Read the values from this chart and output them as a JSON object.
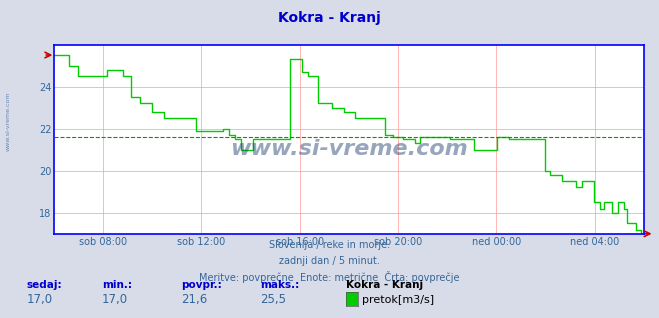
{
  "title": "Kokra - Kranj",
  "title_color": "#0000cc",
  "bg_color": "#d8dce8",
  "plot_bg_color": "#ffffff",
  "line_color": "#00cc00",
  "avg_line_color": "#009900",
  "axis_color": "#0000ff",
  "grid_color": "#ff9999",
  "text_color": "#336699",
  "ylim": [
    17.0,
    26.0
  ],
  "yticks": [
    18,
    20,
    22,
    24
  ],
  "avg_value": 21.6,
  "subtitle1": "Slovenija / reke in morje.",
  "subtitle2": "zadnji dan / 5 minut.",
  "subtitle3": "Meritve: povprečne  Enote: metrične  Črta: povprečje",
  "footer_labels": [
    "sedaj:",
    "min.:",
    "povpr.:",
    "maks.:",
    "Kokra - Kranj"
  ],
  "footer_values": [
    "17,0",
    "17,0",
    "21,6",
    "25,5"
  ],
  "legend_label": "pretok[m3/s]",
  "xtick_labels": [
    "sob 08:00",
    "sob 12:00",
    "sob 16:00",
    "sob 20:00",
    "ned 00:00",
    "ned 04:00"
  ],
  "watermark": "www.si-vreme.com",
  "watermark_color": "#1a3a6b",
  "left_watermark_color": "#5577aa",
  "keypoints": [
    [
      0.0,
      25.5
    ],
    [
      0.01,
      25.5
    ],
    [
      0.025,
      25.0
    ],
    [
      0.04,
      24.5
    ],
    [
      0.055,
      24.5
    ],
    [
      0.07,
      24.5
    ],
    [
      0.09,
      24.8
    ],
    [
      0.1,
      24.8
    ],
    [
      0.115,
      24.5
    ],
    [
      0.13,
      23.5
    ],
    [
      0.145,
      23.2
    ],
    [
      0.165,
      22.8
    ],
    [
      0.185,
      22.5
    ],
    [
      0.21,
      22.5
    ],
    [
      0.24,
      21.9
    ],
    [
      0.27,
      21.9
    ],
    [
      0.285,
      22.0
    ],
    [
      0.295,
      21.7
    ],
    [
      0.305,
      21.5
    ],
    [
      0.315,
      21.0
    ],
    [
      0.325,
      21.0
    ],
    [
      0.335,
      21.5
    ],
    [
      0.345,
      21.5
    ],
    [
      0.355,
      21.5
    ],
    [
      0.395,
      21.5
    ],
    [
      0.4,
      25.3
    ],
    [
      0.415,
      25.3
    ],
    [
      0.42,
      24.7
    ],
    [
      0.43,
      24.5
    ],
    [
      0.445,
      23.2
    ],
    [
      0.46,
      23.2
    ],
    [
      0.47,
      23.0
    ],
    [
      0.49,
      22.8
    ],
    [
      0.51,
      22.5
    ],
    [
      0.54,
      22.5
    ],
    [
      0.56,
      21.7
    ],
    [
      0.575,
      21.6
    ],
    [
      0.59,
      21.5
    ],
    [
      0.6,
      21.5
    ],
    [
      0.61,
      21.3
    ],
    [
      0.62,
      21.6
    ],
    [
      0.64,
      21.6
    ],
    [
      0.66,
      21.6
    ],
    [
      0.67,
      21.5
    ],
    [
      0.68,
      21.5
    ],
    [
      0.7,
      21.5
    ],
    [
      0.71,
      21.0
    ],
    [
      0.72,
      21.0
    ],
    [
      0.74,
      21.0
    ],
    [
      0.75,
      21.6
    ],
    [
      0.76,
      21.6
    ],
    [
      0.77,
      21.5
    ],
    [
      0.79,
      21.5
    ],
    [
      0.82,
      21.5
    ],
    [
      0.83,
      20.0
    ],
    [
      0.84,
      19.8
    ],
    [
      0.86,
      19.5
    ],
    [
      0.875,
      19.5
    ],
    [
      0.885,
      19.2
    ],
    [
      0.895,
      19.5
    ],
    [
      0.905,
      19.5
    ],
    [
      0.915,
      18.5
    ],
    [
      0.925,
      18.2
    ],
    [
      0.93,
      18.5
    ],
    [
      0.94,
      18.5
    ],
    [
      0.945,
      18.0
    ],
    [
      0.95,
      18.0
    ],
    [
      0.955,
      18.5
    ],
    [
      0.96,
      18.5
    ],
    [
      0.965,
      18.2
    ],
    [
      0.97,
      17.5
    ],
    [
      0.975,
      17.5
    ],
    [
      0.98,
      17.5
    ],
    [
      0.985,
      17.2
    ],
    [
      0.99,
      17.2
    ],
    [
      0.995,
      17.0
    ],
    [
      1.0,
      17.0
    ]
  ]
}
